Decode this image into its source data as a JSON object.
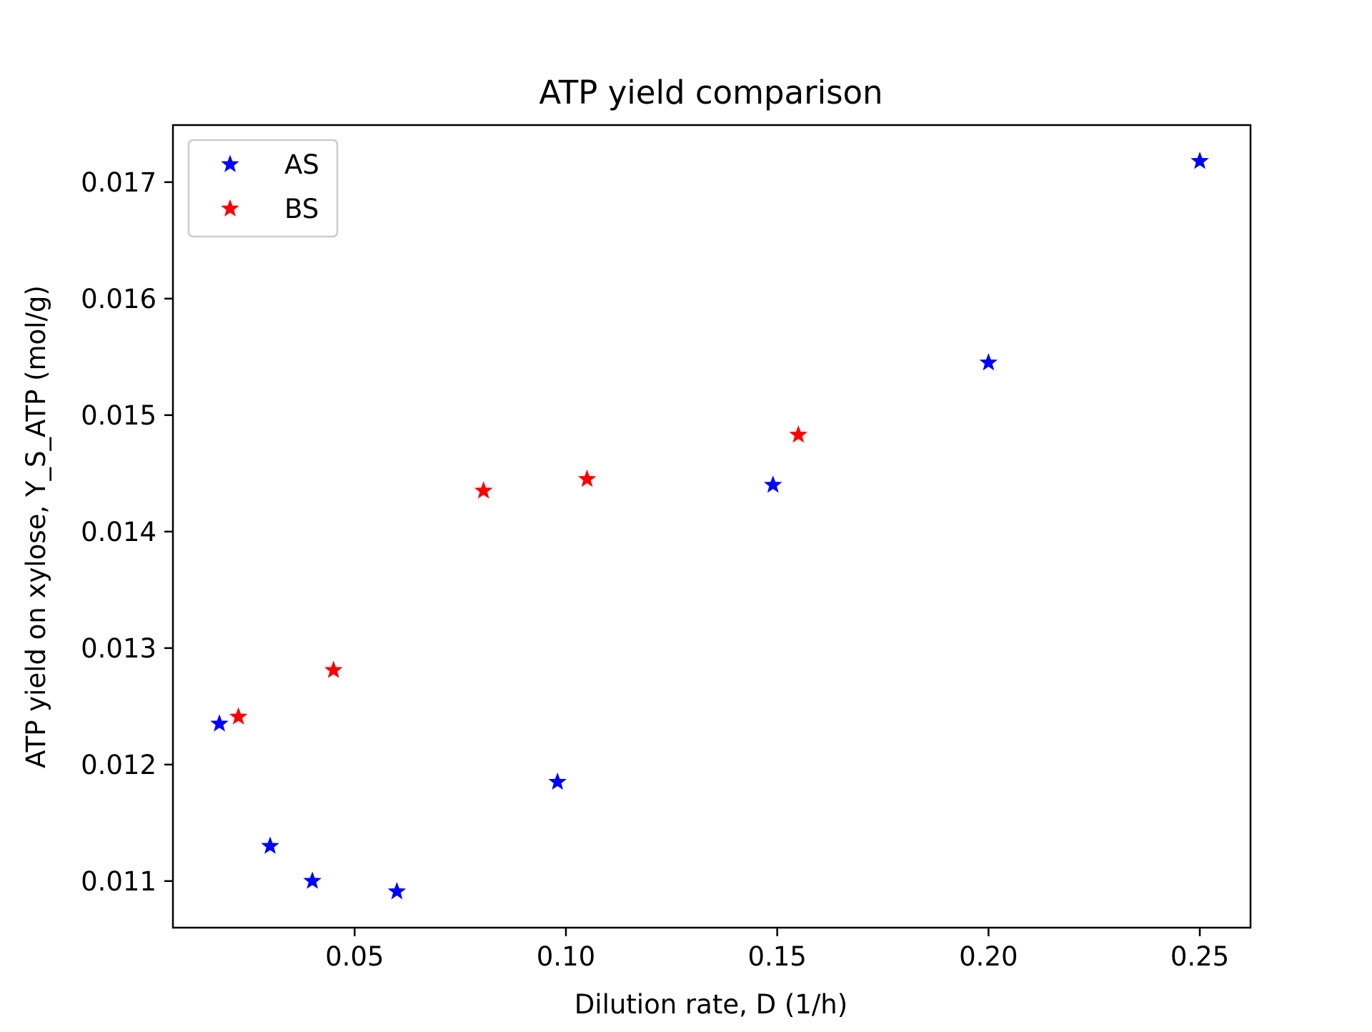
{
  "chart_data": {
    "type": "scatter",
    "title": "ATP yield comparison",
    "xlabel": "Dilution rate, D (1/h)",
    "ylabel": "ATP yield on xylose, Y_S_ATP (mol/g)",
    "xlim": [
      0.007,
      0.262
    ],
    "ylim": [
      0.0106,
      0.01749
    ],
    "x_ticks": [
      0.05,
      0.1,
      0.15,
      0.2,
      0.25
    ],
    "x_tick_labels": [
      "0.05",
      "0.10",
      "0.15",
      "0.20",
      "0.25"
    ],
    "y_ticks": [
      0.011,
      0.012,
      0.013,
      0.014,
      0.015,
      0.016,
      0.017
    ],
    "y_tick_labels": [
      "0.011",
      "0.012",
      "0.013",
      "0.014",
      "0.015",
      "0.016",
      "0.017"
    ],
    "grid": false,
    "legend_position": "upper left",
    "marker": "star",
    "series": [
      {
        "name": "AS",
        "color": "#0000ff",
        "points": [
          {
            "x": 0.018,
            "y": 0.01235
          },
          {
            "x": 0.03,
            "y": 0.0113
          },
          {
            "x": 0.04,
            "y": 0.011
          },
          {
            "x": 0.06,
            "y": 0.01091
          },
          {
            "x": 0.098,
            "y": 0.01185
          },
          {
            "x": 0.149,
            "y": 0.0144
          },
          {
            "x": 0.2,
            "y": 0.01545
          },
          {
            "x": 0.25,
            "y": 0.01718
          }
        ]
      },
      {
        "name": "BS",
        "color": "#ff0000",
        "points": [
          {
            "x": 0.0225,
            "y": 0.01241
          },
          {
            "x": 0.045,
            "y": 0.01281
          },
          {
            "x": 0.0805,
            "y": 0.01435
          },
          {
            "x": 0.105,
            "y": 0.01445
          },
          {
            "x": 0.155,
            "y": 0.01483
          }
        ]
      }
    ]
  }
}
